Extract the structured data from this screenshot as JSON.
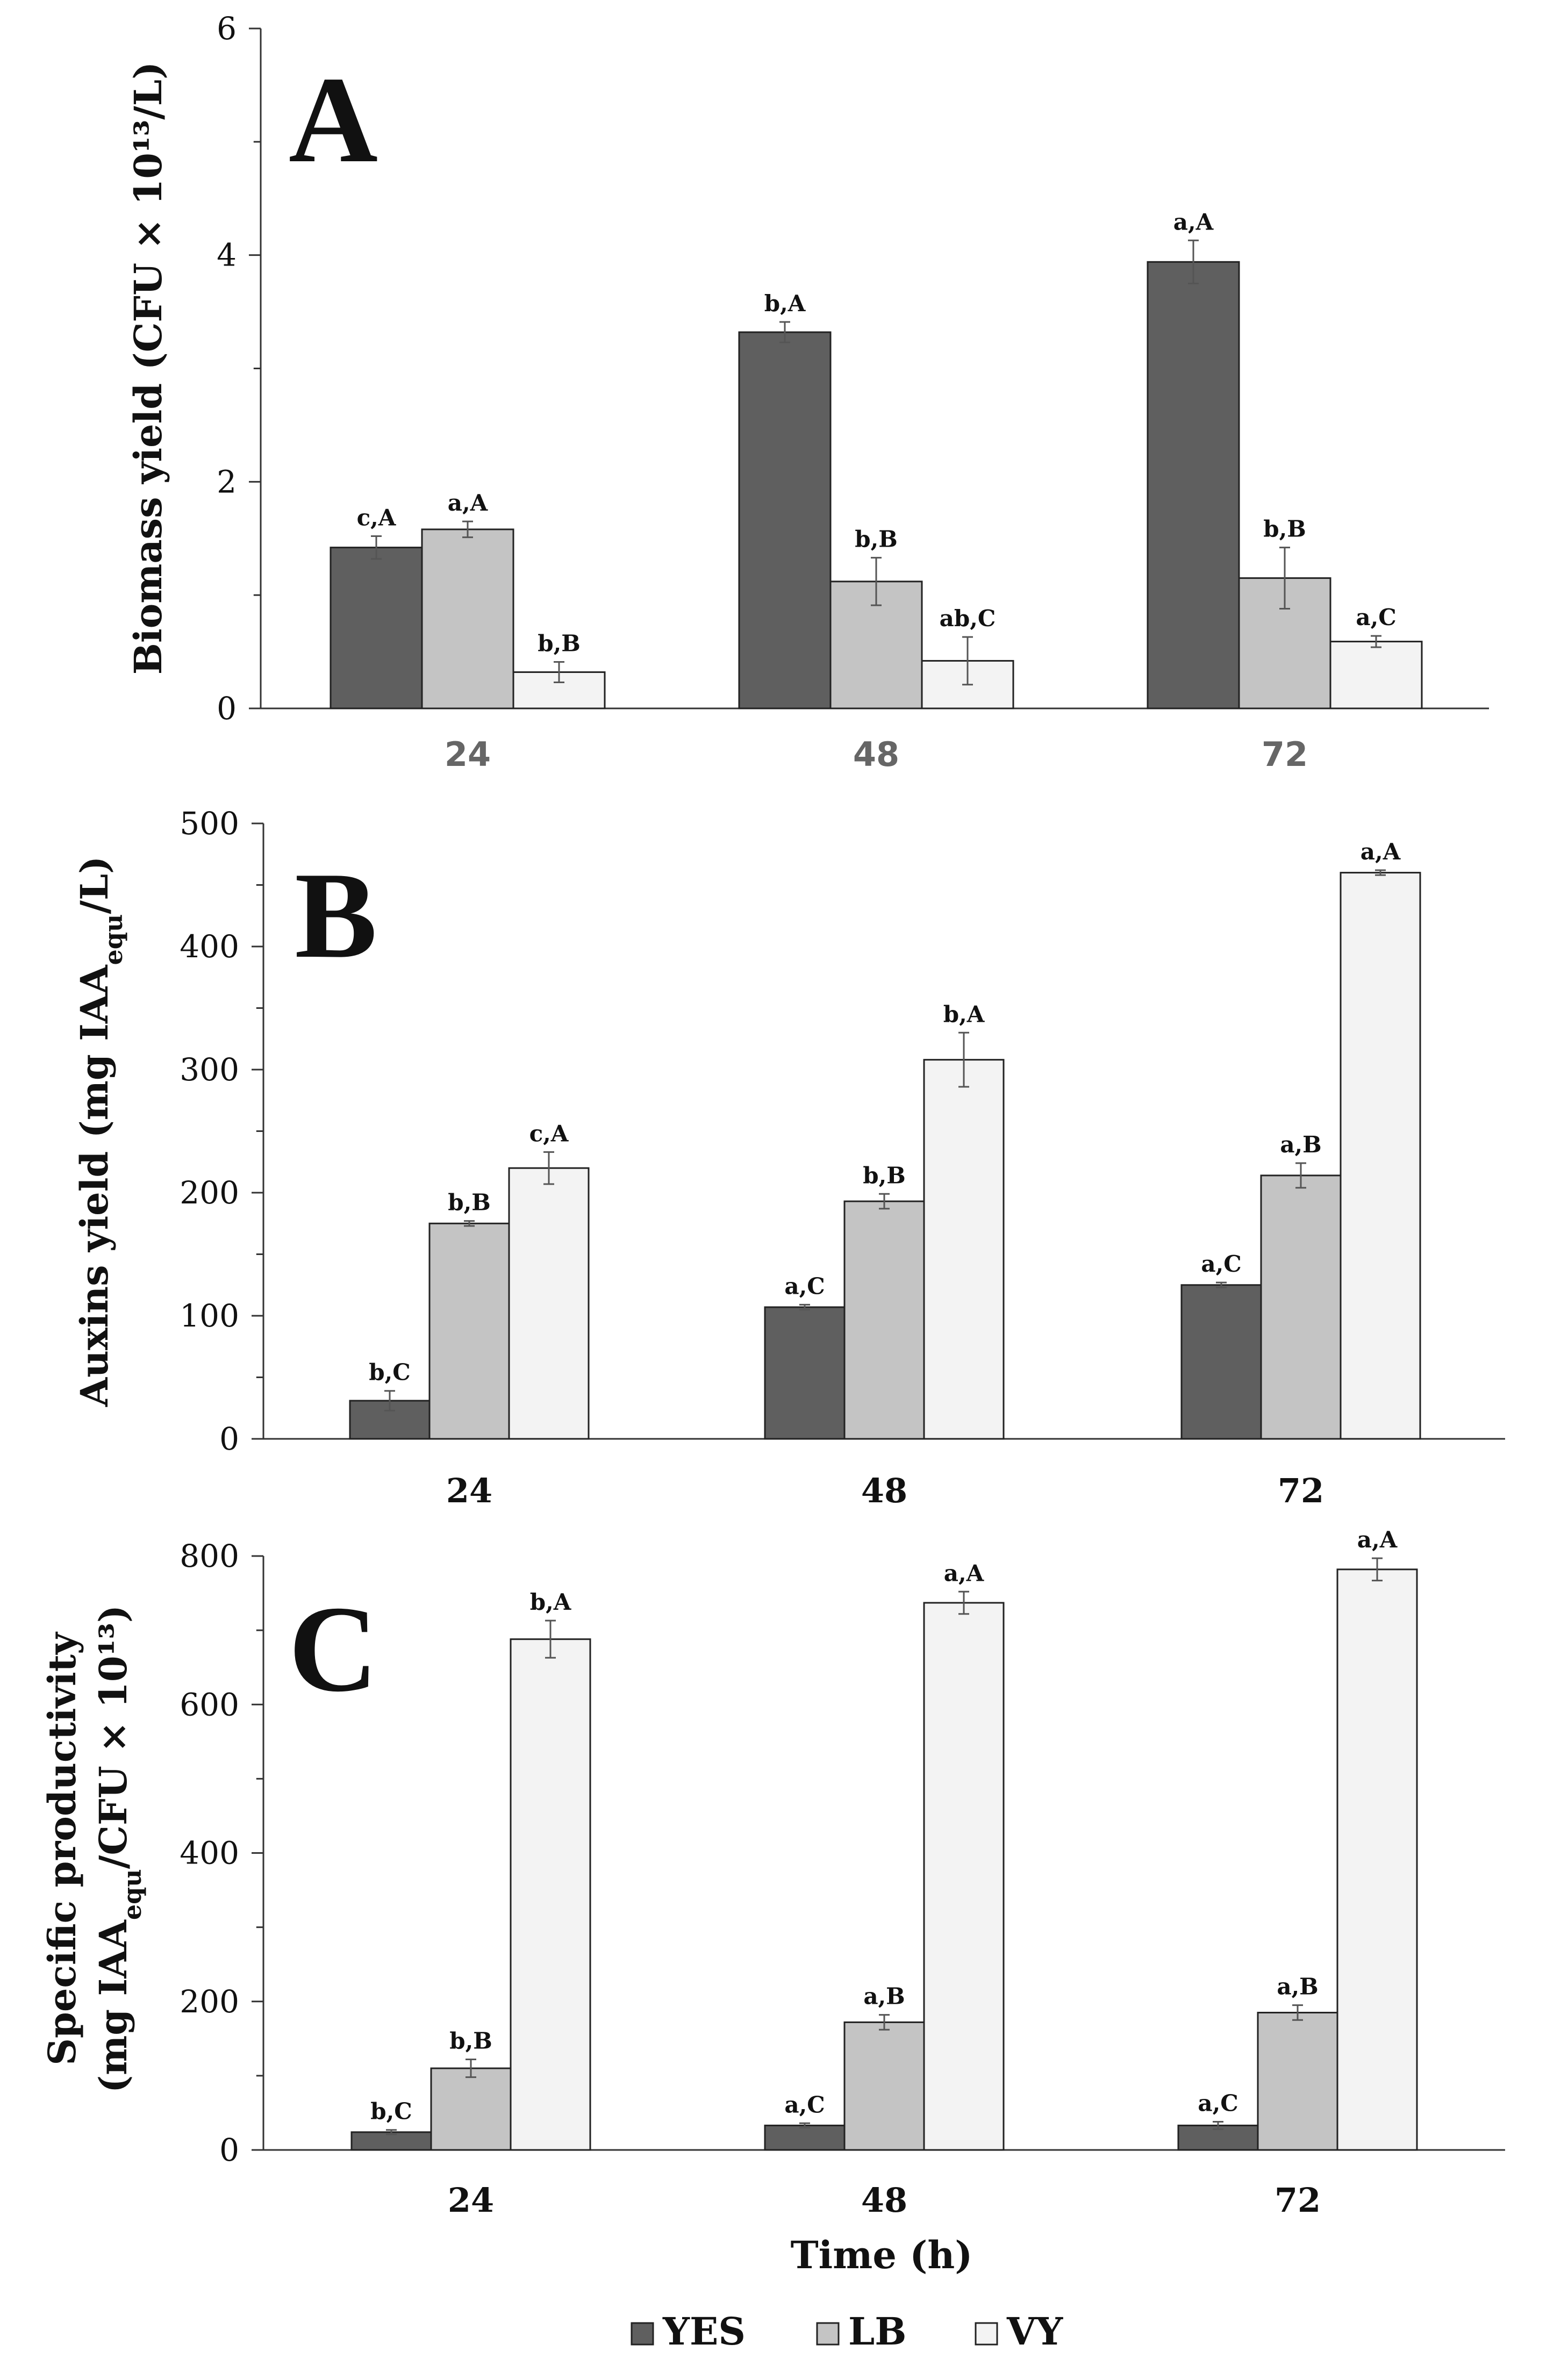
{
  "legend": [
    {
      "name": "YES",
      "color": "#5f5f5f"
    },
    {
      "name": "LB",
      "color": "#c4c4c4"
    },
    {
      "name": "VY",
      "color": "#f3f3f3"
    }
  ],
  "xlabel": "Time (h)",
  "chart_data": [
    {
      "panel": "A",
      "type": "bar",
      "title": "A",
      "ylabel": "Biomass yield (CFU × 10¹³/L)",
      "ylim": [
        0,
        6
      ],
      "yticks": [
        0,
        2,
        4,
        6
      ],
      "categories": [
        "24",
        "48",
        "72"
      ],
      "series": [
        {
          "name": "YES",
          "values": [
            1.42,
            3.32,
            3.94
          ],
          "errors": [
            0.1,
            0.09,
            0.19
          ],
          "labels": [
            "c,A",
            "b,A",
            "a,A"
          ]
        },
        {
          "name": "LB",
          "values": [
            1.58,
            1.12,
            1.15
          ],
          "errors": [
            0.07,
            0.21,
            0.27
          ],
          "labels": [
            "a,A",
            "b,B",
            "b,B"
          ]
        },
        {
          "name": "VY",
          "values": [
            0.32,
            0.42,
            0.59
          ],
          "errors": [
            0.09,
            0.21,
            0.05
          ],
          "labels": [
            "b,B",
            "ab,C",
            "a,C"
          ]
        }
      ]
    },
    {
      "panel": "B",
      "type": "bar",
      "title": "B",
      "ylabel": "Auxins yield (mg IAA",
      "ylabel_sub": "equ",
      "ylabel_end": "/L)",
      "ylim": [
        0,
        500
      ],
      "yticks": [
        0,
        100,
        200,
        300,
        400,
        500
      ],
      "categories": [
        "24",
        "48",
        "72"
      ],
      "series": [
        {
          "name": "YES",
          "values": [
            31,
            107,
            125
          ],
          "errors": [
            8,
            2,
            2
          ],
          "labels": [
            "b,C",
            "a,C",
            "a,C"
          ]
        },
        {
          "name": "LB",
          "values": [
            175,
            193,
            214
          ],
          "errors": [
            2,
            6,
            10
          ],
          "labels": [
            "b,B",
            "b,B",
            "a,B"
          ]
        },
        {
          "name": "VY",
          "values": [
            220,
            308,
            460
          ],
          "errors": [
            13,
            22,
            2
          ],
          "labels": [
            "c,A",
            "b,A",
            "a,A"
          ]
        }
      ]
    },
    {
      "panel": "C",
      "type": "bar",
      "title": "C",
      "ylabel": "Specific productivity",
      "ylabel_line2": "(mg IAA",
      "ylabel_sub": "equ",
      "ylabel_line2_end": "/CFU × 10¹³)",
      "ylim": [
        0,
        800
      ],
      "yticks": [
        0,
        200,
        400,
        600,
        800
      ],
      "categories": [
        "24",
        "48",
        "72"
      ],
      "series": [
        {
          "name": "YES",
          "values": [
            24,
            33,
            33
          ],
          "errors": [
            3,
            3,
            5
          ],
          "labels": [
            "b,C",
            "a,C",
            "a,C"
          ]
        },
        {
          "name": "LB",
          "values": [
            110,
            172,
            185
          ],
          "errors": [
            12,
            10,
            10
          ],
          "labels": [
            "b,B",
            "a,B",
            "a,B"
          ]
        },
        {
          "name": "VY",
          "values": [
            688,
            737,
            782
          ],
          "errors": [
            25,
            15,
            15
          ],
          "labels": [
            "b,A",
            "a,A",
            "a,A"
          ]
        }
      ]
    }
  ]
}
